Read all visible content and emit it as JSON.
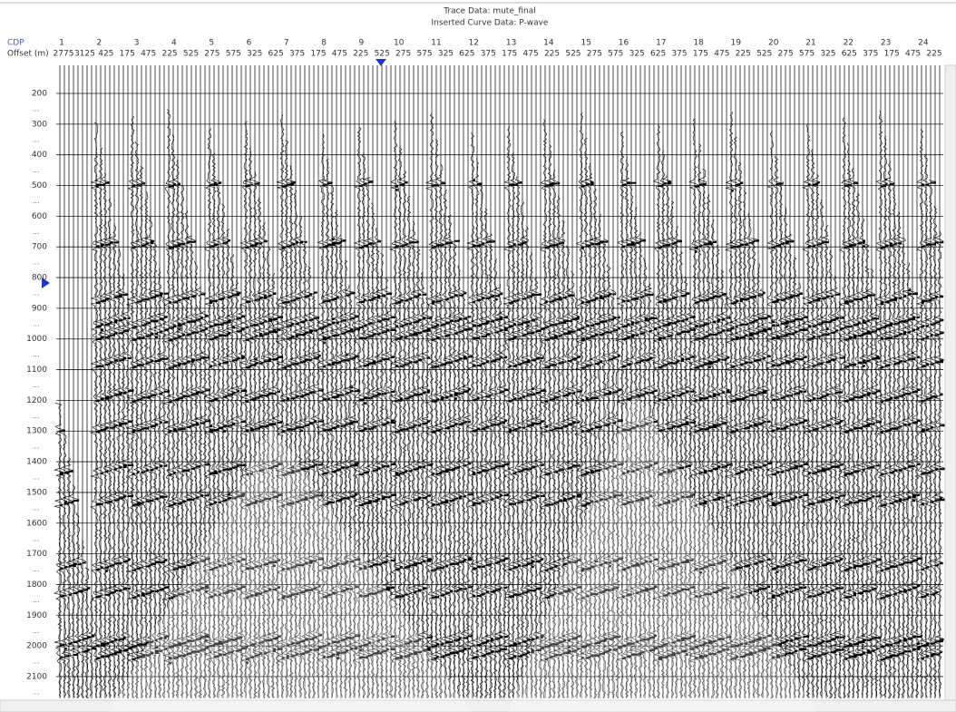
{
  "header": {
    "title": "Trace Data: mute_final",
    "subtitle": "Inserted Curve Data: P-wave"
  },
  "columns": {
    "cdp_label": "CDP",
    "offset_label": "Offset (m)",
    "cdp": [
      1,
      2,
      3,
      4,
      5,
      6,
      7,
      8,
      9,
      10,
      11,
      12,
      13,
      14,
      15,
      16,
      17,
      18,
      19,
      20,
      21,
      22,
      23,
      24
    ],
    "offsets": [
      2775,
      3125,
      425,
      175,
      475,
      225,
      525,
      275,
      575,
      325,
      625,
      375,
      175,
      475,
      225,
      525,
      275,
      575,
      325,
      625,
      375,
      175,
      475,
      225,
      525,
      275,
      575,
      325,
      625,
      375,
      175,
      475,
      225,
      525,
      275,
      575,
      325,
      625,
      375,
      175,
      475,
      225
    ]
  },
  "time_axis": {
    "labels": [
      200,
      300,
      400,
      500,
      600,
      700,
      800,
      900,
      1000,
      1100,
      1200,
      1300,
      1400,
      1500,
      1600,
      1700,
      1800,
      1900,
      2000,
      2100
    ]
  }
}
